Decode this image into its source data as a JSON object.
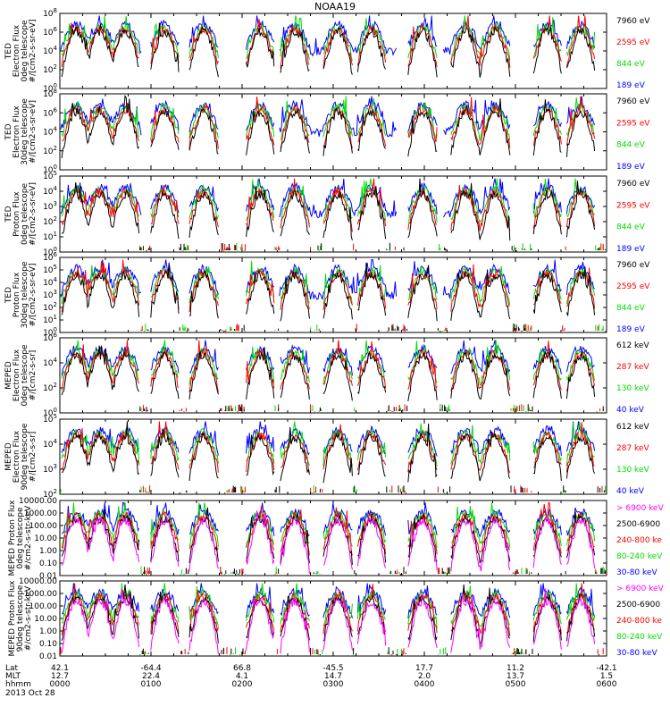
{
  "title": "NOAA19",
  "colors": {
    "black": "#000000",
    "red": "#ff0000",
    "green": "#00dd00",
    "blue": "#0000ff",
    "magenta": "#ff00ff"
  },
  "panels": [
    {
      "ylabel": [
        "TED",
        "Electron Flux",
        "0deg telescope",
        "#/[cm2-s-sr-eV]"
      ],
      "ticks": [
        {
          "v": "10",
          "e": "0"
        },
        {
          "v": "10",
          "e": "2"
        },
        {
          "v": "10",
          "e": "4"
        },
        {
          "v": "10",
          "e": "6"
        },
        {
          "v": "10",
          "e": "8"
        }
      ],
      "legend": [
        {
          "label": "7960 eV",
          "color": "black"
        },
        {
          "label": "2595 eV",
          "color": "red"
        },
        {
          "label": "844 eV",
          "color": "green"
        },
        {
          "label": "189 eV",
          "color": "blue"
        }
      ]
    },
    {
      "ylabel": [
        "TED",
        "Electron Flux",
        "30deg telescope",
        "#/[cm2-s-sr-eV]"
      ],
      "ticks": [
        {
          "v": "10",
          "e": "0"
        },
        {
          "v": "10",
          "e": "2"
        },
        {
          "v": "10",
          "e": "4"
        },
        {
          "v": "10",
          "e": "6"
        },
        {
          "v": "10",
          "e": "8"
        }
      ],
      "legend": [
        {
          "label": "7960 eV",
          "color": "black"
        },
        {
          "label": "2595 eV",
          "color": "red"
        },
        {
          "label": "844 eV",
          "color": "green"
        },
        {
          "label": "189 eV",
          "color": "blue"
        }
      ]
    },
    {
      "ylabel": [
        "TED",
        "Proton Flux",
        "0deg telescope",
        "#/[cm2-s-sr-eV]"
      ],
      "ticks": [
        {
          "v": "10",
          "e": "0"
        },
        {
          "v": "10",
          "e": "1"
        },
        {
          "v": "10",
          "e": "2"
        },
        {
          "v": "10",
          "e": "3"
        },
        {
          "v": "10",
          "e": "4"
        },
        {
          "v": "10",
          "e": "5"
        }
      ],
      "legend": [
        {
          "label": "7960 eV",
          "color": "black"
        },
        {
          "label": "2595 eV",
          "color": "red"
        },
        {
          "label": "844 eV",
          "color": "green"
        },
        {
          "label": "189 eV",
          "color": "blue"
        }
      ]
    },
    {
      "ylabel": [
        "TED",
        "Proton Flux",
        "30deg telescope",
        "#/[cm2-s-sr-eV]"
      ],
      "ticks": [
        {
          "v": "10",
          "e": "0"
        },
        {
          "v": "10",
          "e": "1"
        },
        {
          "v": "10",
          "e": "2"
        },
        {
          "v": "10",
          "e": "3"
        },
        {
          "v": "10",
          "e": "4"
        },
        {
          "v": "10",
          "e": "5"
        },
        {
          "v": "10",
          "e": "6"
        }
      ],
      "legend": [
        {
          "label": "7960 eV",
          "color": "black"
        },
        {
          "label": "2595 eV",
          "color": "red"
        },
        {
          "label": "844 eV",
          "color": "green"
        },
        {
          "label": "189 eV",
          "color": "blue"
        }
      ]
    },
    {
      "ylabel": [
        "MEPED",
        "Electron Flux",
        "0deg telescope",
        "#/[cm2-s-sr]"
      ],
      "ticks": [
        {
          "v": "10",
          "e": "0"
        },
        {
          "v": "10",
          "e": "2"
        },
        {
          "v": "10",
          "e": "4"
        },
        {
          "v": "10",
          "e": "6"
        }
      ],
      "legend": [
        {
          "label": "612 keV",
          "color": "black"
        },
        {
          "label": "287 keV",
          "color": "red"
        },
        {
          "label": "130 keV",
          "color": "green"
        },
        {
          "label": "40 keV",
          "color": "blue"
        }
      ]
    },
    {
      "ylabel": [
        "MEPED",
        "Electron Flux",
        "90deg telescope",
        "#/[cm2-s-sr]"
      ],
      "ticks": [
        {
          "v": "10",
          "e": "2"
        },
        {
          "v": "10",
          "e": "3"
        },
        {
          "v": "10",
          "e": "4"
        },
        {
          "v": "10",
          "e": "5"
        }
      ],
      "legend": [
        {
          "label": "612 keV",
          "color": "black"
        },
        {
          "label": "287 keV",
          "color": "red"
        },
        {
          "label": "130 keV",
          "color": "green"
        },
        {
          "label": "40 keV",
          "color": "blue"
        }
      ]
    },
    {
      "ylabel": [
        "MEPED Proton Flux",
        "0deg telescope",
        "#/cm2-s-str-keV"
      ],
      "ticks": [
        {
          "v": "0.01"
        },
        {
          "v": "0.10"
        },
        {
          "v": "1.00"
        },
        {
          "v": "10.00"
        },
        {
          "v": "100.00"
        },
        {
          "v": "1000.00"
        },
        {
          "v": "10000.00"
        }
      ],
      "legend": [
        {
          "label": "> 6900 keV",
          "color": "magenta"
        },
        {
          "label": "2500-6900",
          "color": "black"
        },
        {
          "label": "240-800 ke",
          "color": "red"
        },
        {
          "label": "80-240 keV",
          "color": "green"
        },
        {
          "label": "30-80 keV",
          "color": "blue"
        }
      ]
    },
    {
      "ylabel": [
        "MEPED Proton Flux",
        "90deg telescope",
        "#/cm2-s-str-keV"
      ],
      "ticks": [
        {
          "v": "0.01"
        },
        {
          "v": "0.10"
        },
        {
          "v": "1.00"
        },
        {
          "v": "10.00"
        },
        {
          "v": "100.00"
        },
        {
          "v": "1000.00"
        },
        {
          "v": "10000.00"
        }
      ],
      "legend": [
        {
          "label": "> 6900 keV",
          "color": "magenta"
        },
        {
          "label": "2500-6900",
          "color": "black"
        },
        {
          "label": "240-800 ke",
          "color": "red"
        },
        {
          "label": "80-240 keV",
          "color": "green"
        },
        {
          "label": "30-80 keV",
          "color": "blue"
        }
      ]
    }
  ],
  "axis": {
    "row_labels": [
      "Lat",
      "MLT",
      "hhmm"
    ],
    "date": "2013 Oct 28",
    "columns": [
      {
        "lat": "42.1",
        "mlt": "12.7",
        "hhmm": "0000"
      },
      {
        "lat": "-64.4",
        "mlt": "22.4",
        "hhmm": "0100"
      },
      {
        "lat": "66.8",
        "mlt": "4.1",
        "hhmm": "0200"
      },
      {
        "lat": "-45.5",
        "mlt": "14.7",
        "hhmm": "0300"
      },
      {
        "lat": "17.7",
        "mlt": "2.0",
        "hhmm": "0400"
      },
      {
        "lat": "11.2",
        "mlt": "13.7",
        "hhmm": "0500"
      },
      {
        "lat": "-42.1",
        "mlt": "1.5",
        "hhmm": "0600"
      }
    ]
  },
  "chart_data": {
    "type": "line",
    "title": "NOAA19",
    "x_unit": "hhmm",
    "x_ticks": [
      "0000",
      "0100",
      "0200",
      "0300",
      "0400",
      "0500",
      "0600"
    ],
    "passes_hours": [
      0.18,
      0.44,
      0.72,
      1.15,
      1.58,
      2.2,
      2.58,
      3.05,
      3.42,
      3.98,
      4.45,
      4.78,
      5.35,
      5.72
    ],
    "series_note_levels": {
      "ted_electron_0deg": {
        "189 eV": [
          1000.0,
          1000000.0
        ],
        "844 eV": [
          100.0,
          10000.0
        ],
        "2595 eV": [
          10.0,
          10000.0
        ],
        "7960 eV": [
          1.0,
          1000.0
        ]
      },
      "meped_electron_0deg": {
        "40 keV": [
          10.0,
          100000.0
        ],
        "130 keV": [
          1.0,
          100000.0
        ],
        "287 keV": [
          1.0,
          100000.0
        ],
        "612 keV": [
          1.0,
          100000.0
        ]
      }
    }
  }
}
